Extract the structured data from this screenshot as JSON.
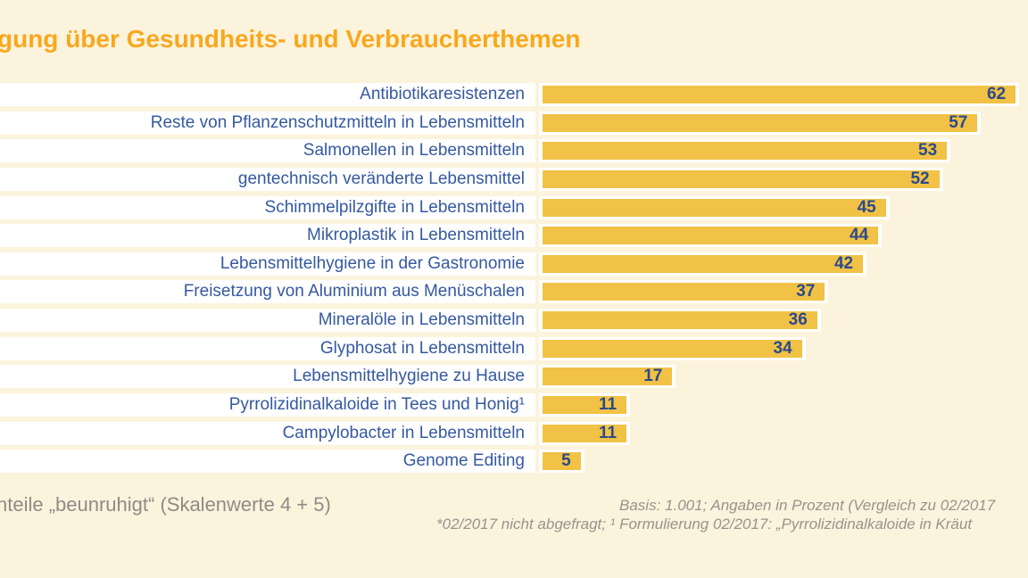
{
  "title": "gung über Gesundheits- und Verbraucherthemen",
  "chart_data": {
    "type": "bar",
    "orientation": "horizontal",
    "title": "gung über Gesundheits- und Verbraucherthemen",
    "categories": [
      "Antibiotikaresistenzen",
      "Reste von Pflanzenschutzmitteln in Lebensmitteln",
      "Salmonellen in Lebensmitteln",
      "gentechnisch veränderte Lebensmittel",
      "Schimmelpilzgifte in Lebensmitteln",
      "Mikroplastik in Lebensmitteln",
      "Lebensmittelhygiene in der Gastronomie",
      "Freisetzung von Aluminium aus Menüschalen",
      "Mineralöle in Lebensmitteln",
      "Glyphosat in Lebensmitteln",
      "Lebensmittelhygiene zu Hause",
      "Pyrrolizidinalkaloide in Tees und Honig¹",
      "Campylobacter in Lebensmitteln",
      "Genome Editing"
    ],
    "values": [
      62,
      57,
      53,
      52,
      45,
      44,
      42,
      37,
      36,
      34,
      17,
      11,
      11,
      5
    ],
    "value_unit": "percent",
    "xlabel": "",
    "ylabel": "",
    "xlim": [
      0,
      64
    ],
    "grid": false,
    "legend": false,
    "value_labels": "inside-bar-right"
  },
  "footer": {
    "left_note": "nteile „beunruhigt“ (Skalenwerte 4 + 5)",
    "right_note_line1": "Basis: 1.001; Angaben in Prozent (Vergleich zu 02/2017",
    "right_note_line2": "*02/2017 nicht abgefragt; ¹ Formulierung 02/2017: „Pyrrolizidinalkaloide in Kräut"
  },
  "colors": {
    "bg": "#FCF3DC",
    "bar": "#F1C245",
    "title": "#F8A81E",
    "label": "#35599F",
    "value": "#2B4A8B",
    "gray": "#8E8C86",
    "gray2": "#97948E",
    "row_strip": "#FFFFFF"
  }
}
